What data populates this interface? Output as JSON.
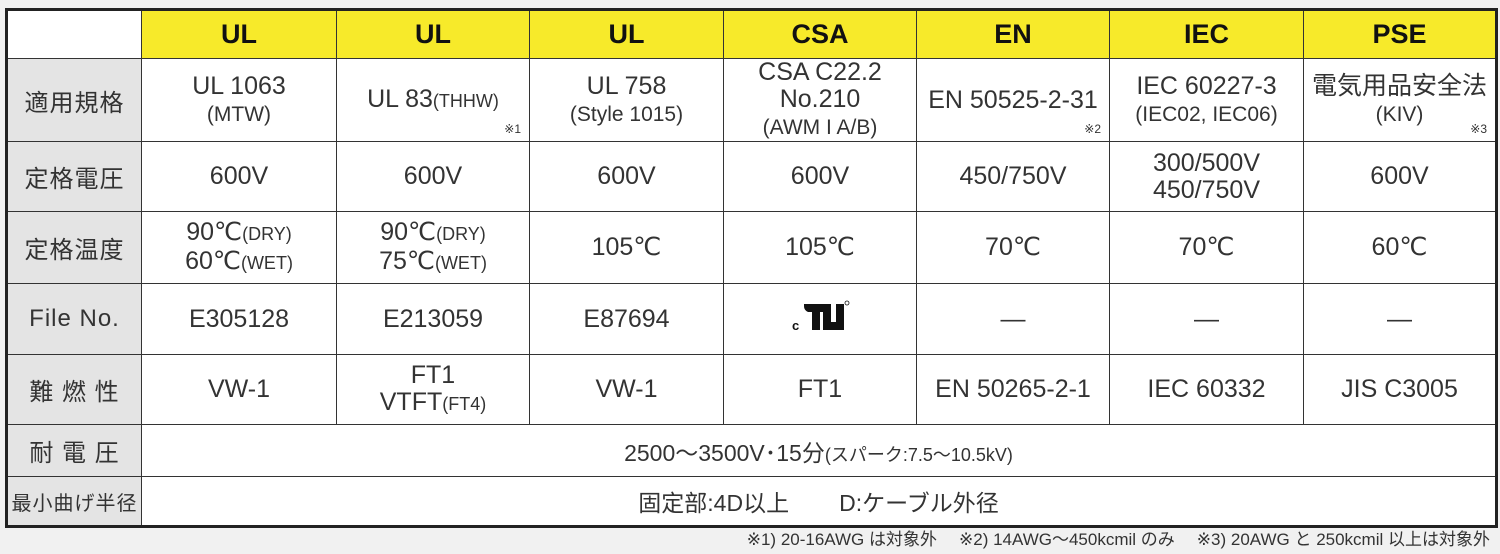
{
  "headers": [
    "",
    "UL",
    "UL",
    "UL",
    "CSA",
    "EN",
    "IEC",
    "PSE"
  ],
  "colors": {
    "header_bg": "#f7ea2a",
    "label_bg": "#e4e4e4"
  },
  "rows": [
    {
      "label": "適用規格",
      "cells": [
        {
          "l1": "UL 1063",
          "l2": "(MTW)"
        },
        {
          "l1": "UL 83",
          "l1s": "(THHW)",
          "note": "※1"
        },
        {
          "l1": "UL 758",
          "l2": "(Style 1015)"
        },
        {
          "l1": "CSA C22.2 No.210",
          "l2": "(AWM I A/B)"
        },
        {
          "l1": "EN 50525-2-31",
          "note": "※2"
        },
        {
          "l1": "IEC 60227-3",
          "l2": "(IEC02, IEC06)"
        },
        {
          "l1": "電気用品安全法",
          "l2": "(KIV)",
          "note": "※3"
        }
      ]
    },
    {
      "label": "定格電圧",
      "cells": [
        {
          "l1": "600V"
        },
        {
          "l1": "600V"
        },
        {
          "l1": "600V"
        },
        {
          "l1": "600V"
        },
        {
          "l1": "450/750V"
        },
        {
          "l1": "300/500V",
          "l2b": "450/750V"
        },
        {
          "l1": "600V"
        }
      ]
    },
    {
      "label": "定格温度",
      "cells": [
        {
          "l1": "90℃",
          "l1s": "(DRY)",
          "l2b": "60℃",
          "l2s": "(WET)"
        },
        {
          "l1": "90℃",
          "l1s": "(DRY)",
          "l2b": "75℃",
          "l2s": "(WET)"
        },
        {
          "l1": "105℃"
        },
        {
          "l1": "105℃"
        },
        {
          "l1": "70℃"
        },
        {
          "l1": "70℃"
        },
        {
          "l1": "60℃"
        }
      ]
    },
    {
      "label": "File No.",
      "cells": [
        {
          "l1": "E305128"
        },
        {
          "l1": "E213059"
        },
        {
          "l1": "E87694"
        },
        {
          "logo": "c UL"
        },
        {
          "l1": "—"
        },
        {
          "l1": "—"
        },
        {
          "l1": "—"
        }
      ]
    },
    {
      "label": "難 燃 性",
      "cells": [
        {
          "l1": "VW-1"
        },
        {
          "l1": "FT1",
          "l2b": "VTFT",
          "l2s": "(FT4)"
        },
        {
          "l1": "VW-1"
        },
        {
          "l1": "FT1"
        },
        {
          "l1": "EN 50265-2-1"
        },
        {
          "l1": "IEC 60332"
        },
        {
          "l1": "JIS C3005"
        }
      ]
    }
  ],
  "withstand": {
    "label": "耐 電 圧",
    "value": "2500〜3500V･15分",
    "sub": "(スパーク:7.5〜10.5kV)"
  },
  "bend": {
    "label": "最小曲げ半径",
    "value1": "固定部:4D以上",
    "value2": "D:ケーブル外径"
  },
  "footnotes": [
    "※1) 20-16AWG は対象外",
    "※2) 14AWG〜450kcmil のみ",
    "※3) 20AWG と 250kcmil 以上は対象外"
  ]
}
